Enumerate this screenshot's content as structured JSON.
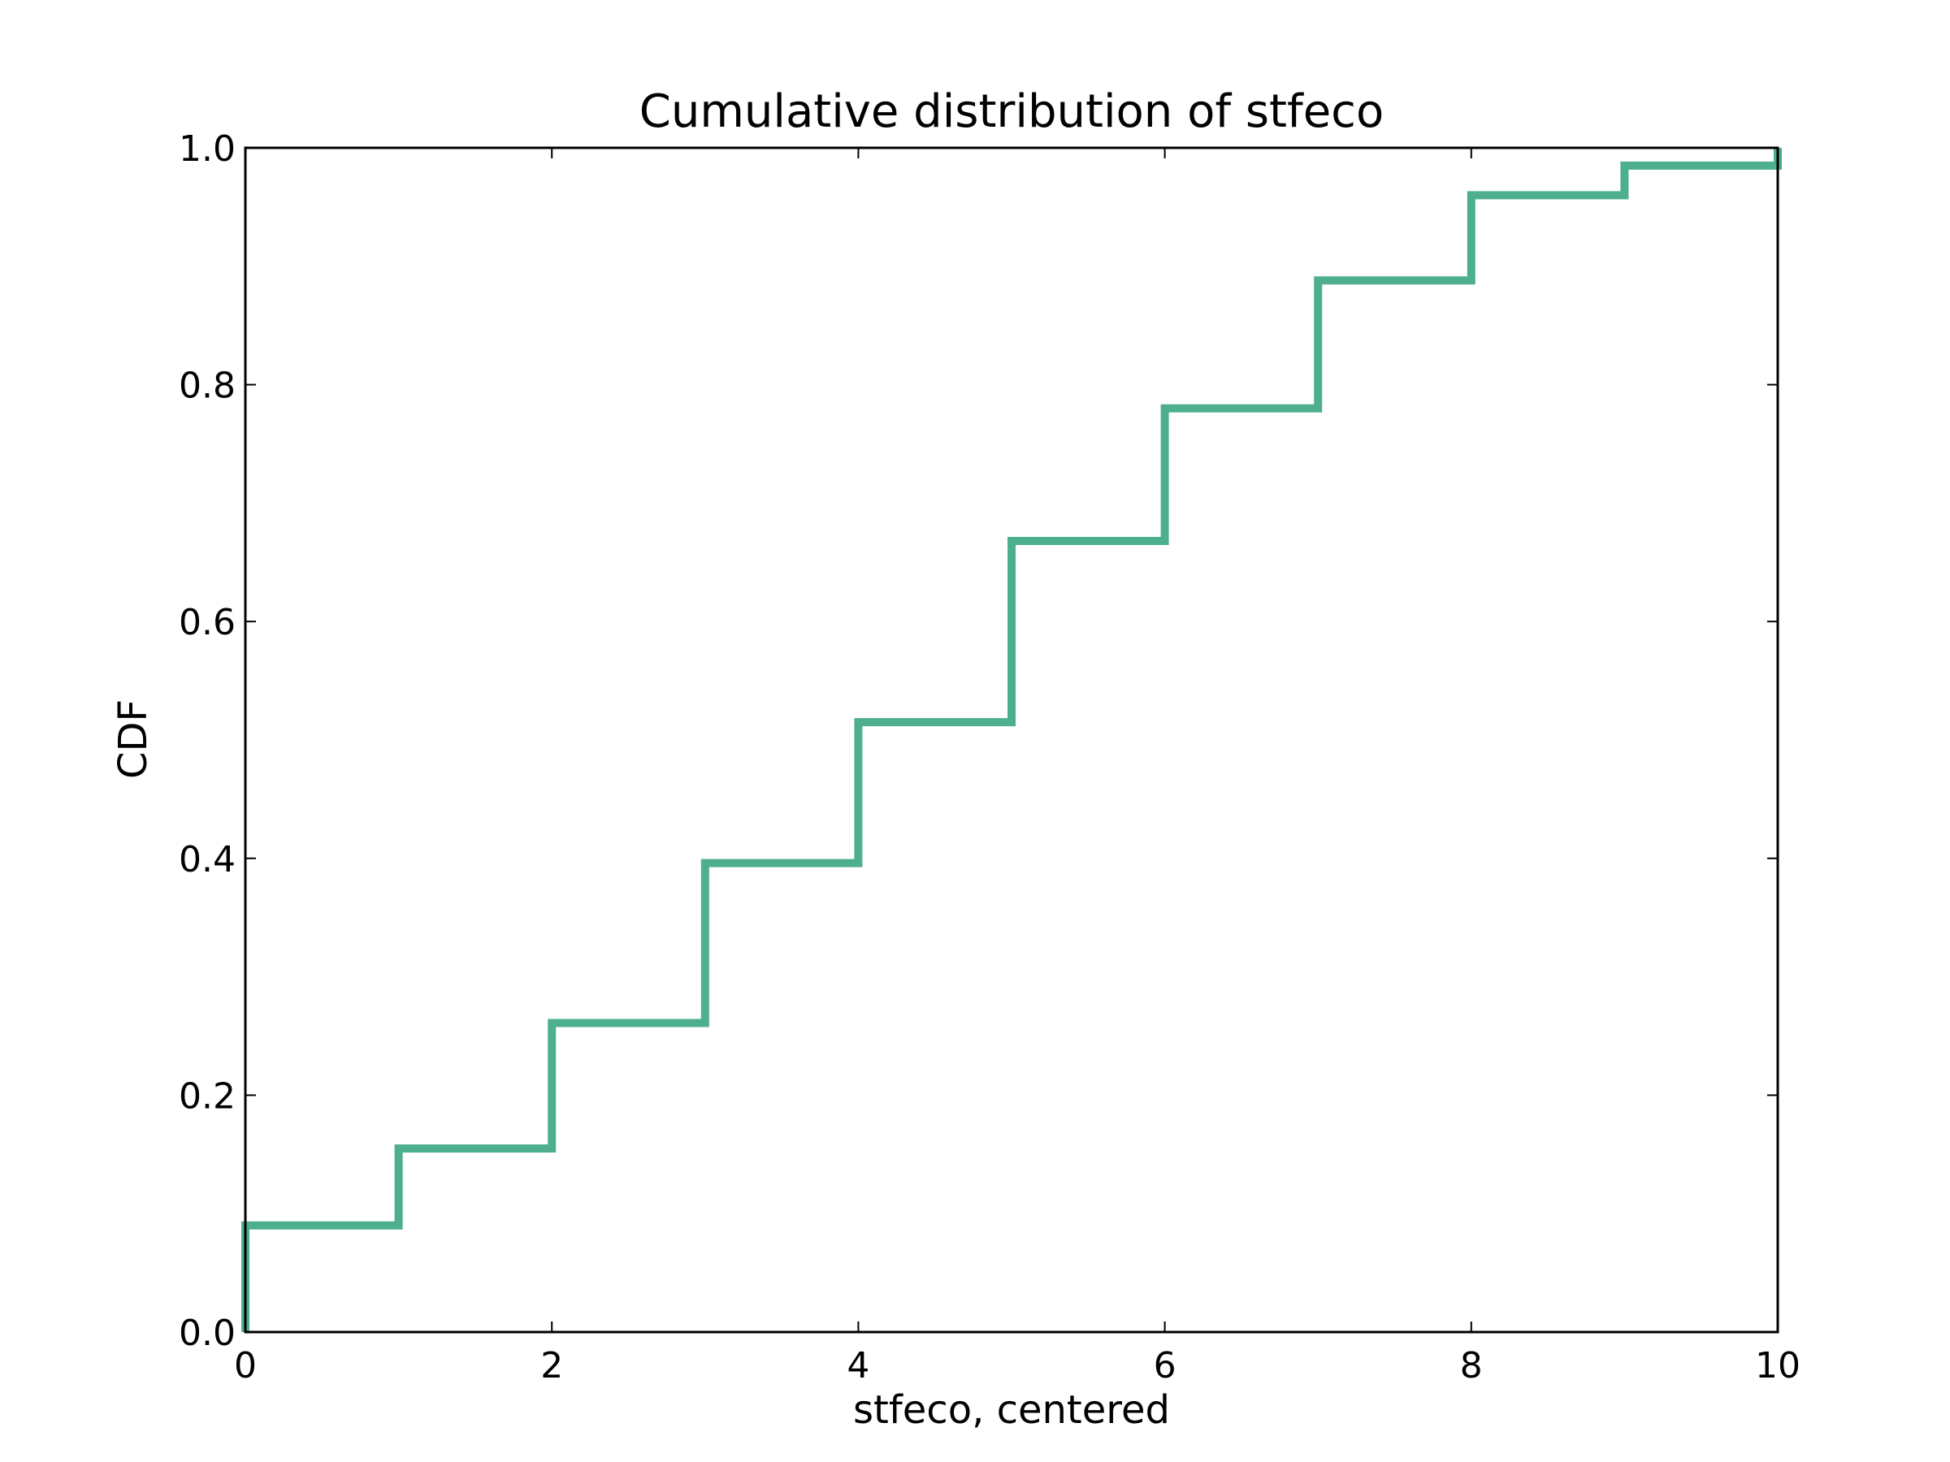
{
  "chart_data": {
    "type": "line",
    "step": "post",
    "title": "Cumulative distribution of stfeco",
    "xlabel": "stfeco, centered",
    "ylabel": "CDF",
    "xlim": [
      0,
      10
    ],
    "ylim": [
      0,
      1.0
    ],
    "grid": false,
    "legend": "none",
    "x_ticks": [
      0,
      2,
      4,
      6,
      8,
      10
    ],
    "x_tick_labels": [
      "0",
      "2",
      "4",
      "6",
      "8",
      "10"
    ],
    "y_ticks": [
      0.0,
      0.2,
      0.4,
      0.6,
      0.8,
      1.0
    ],
    "y_tick_labels": [
      "0.0",
      "0.2",
      "0.4",
      "0.6",
      "0.8",
      "1.0"
    ],
    "series": [
      {
        "color": "#4daf8e",
        "x": [
          0,
          1,
          2,
          3,
          4,
          5,
          6,
          7,
          8,
          9,
          10
        ],
        "values": [
          0.09,
          0.155,
          0.261,
          0.396,
          0.515,
          0.668,
          0.78,
          0.888,
          0.96,
          0.985,
          1.0
        ]
      }
    ]
  }
}
